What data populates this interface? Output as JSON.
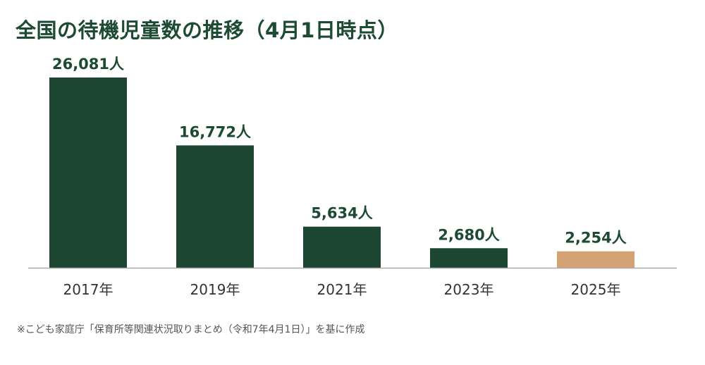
{
  "title": "全国の待機児童数の推移（4月1日時点）",
  "source": "※こども家庭庁「保育所等関連状況取りまとめ（令和7年4月1日）」を基に作成",
  "colors": {
    "primary": "#1c4532",
    "highlight": "#d4a373",
    "title": "#1c4a33",
    "label": "#1c4a33",
    "axis": "#aaaaaa",
    "tick_text": "#333333"
  },
  "chart_data": {
    "type": "bar",
    "title": "全国の待機児童数の推移（4月1日時点）",
    "xlabel": "",
    "ylabel": "",
    "categories": [
      "2017年",
      "2019年",
      "2021年",
      "2023年",
      "2025年"
    ],
    "values": [
      26081,
      16772,
      5634,
      2680,
      2254
    ],
    "data_labels": [
      "26,081人",
      "16,772人",
      "5,634人",
      "2,680人",
      "2,254人"
    ],
    "highlight_index": 4,
    "ylim": [
      0,
      26081
    ],
    "grid": false,
    "legend": "none"
  }
}
